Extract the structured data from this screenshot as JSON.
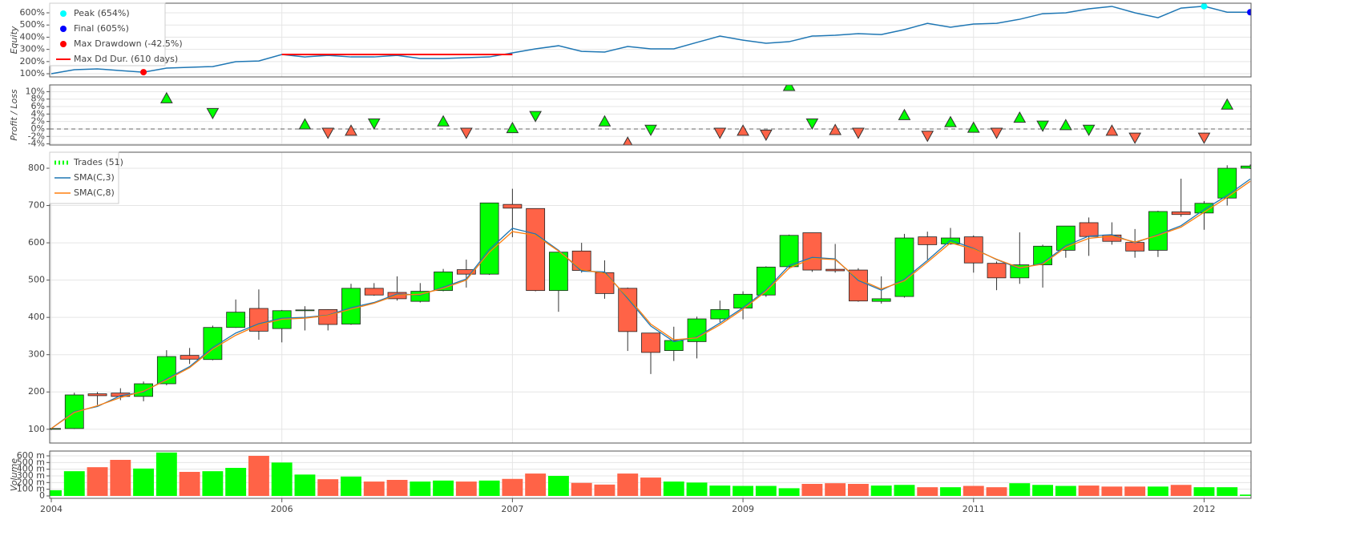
{
  "chart_data": [
    {
      "type": "line",
      "ylabel": "Equity",
      "ylim": [
        74,
        679
      ],
      "yticks": [
        {
          "value": 100,
          "label": "100%"
        },
        {
          "value": 200,
          "label": "200%"
        },
        {
          "value": 300,
          "label": "300%"
        },
        {
          "value": 400,
          "label": "400%"
        },
        {
          "value": 500,
          "label": "500%"
        },
        {
          "value": 600,
          "label": "600%"
        }
      ],
      "series": [
        {
          "color": "#1f77b4",
          "values": [
            100,
            133,
            140,
            126,
            113,
            146,
            153,
            159,
            199,
            205,
            258,
            238,
            251,
            238,
            238,
            251,
            225,
            225,
            232,
            238,
            271,
            304,
            330,
            284,
            278,
            324,
            304,
            304,
            357,
            409,
            376,
            350,
            363,
            409,
            416,
            429,
            422,
            462,
            514,
            482,
            508,
            514,
            547,
            593,
            600,
            633,
            653,
            600,
            560,
            639,
            654,
            605,
            605
          ]
        }
      ],
      "points": [
        {
          "name": "Peak (654%)",
          "color": "#00ffff",
          "x": 50,
          "value": 654
        },
        {
          "name": "Final (605%)",
          "color": "#0000ff",
          "x": 52,
          "value": 605
        },
        {
          "name": "Max Drawdown (-42.5%)",
          "color": "#ff0000",
          "x": 4,
          "value": 113
        }
      ],
      "segment": {
        "name": "Max Dd Dur. (610 days)",
        "color": "#ff0000",
        "x": [
          10,
          20
        ],
        "value": 258
      }
    },
    {
      "type": "scatter",
      "ylabel": "Profit / Loss",
      "ylim": [
        -4.3,
        11.8
      ],
      "yticks": [
        {
          "value": 10,
          "label": "10%"
        },
        {
          "value": 8,
          "label": "8%"
        },
        {
          "value": 6,
          "label": "6%"
        },
        {
          "value": 4,
          "label": "4%"
        },
        {
          "value": 2,
          "label": "2%"
        },
        {
          "value": 0,
          "label": "0%"
        },
        {
          "value": -2,
          "label": "-2%"
        },
        {
          "value": -4,
          "label": "-4%"
        }
      ],
      "x": [
        5,
        7,
        11,
        12,
        13,
        14,
        17,
        18,
        20,
        21,
        24,
        25,
        26,
        29,
        30,
        31,
        32,
        33,
        34,
        35,
        37,
        38,
        39,
        40,
        41,
        42,
        43,
        44,
        45,
        46,
        47,
        50,
        51
      ],
      "values": [
        8.2,
        4.3,
        1.2,
        -1.0,
        -0.5,
        1.5,
        2.0,
        -1.0,
        0.2,
        3.5,
        2.0,
        -3.7,
        -0.2,
        -1.0,
        -0.5,
        -1.5,
        11.5,
        1.5,
        -0.3,
        -1.0,
        3.7,
        -1.8,
        1.8,
        0.3,
        -1.0,
        3.0,
        0.9,
        1.0,
        -0.2,
        -0.5,
        -2.3,
        -2.3,
        6.5
      ],
      "markers": [
        "triangle",
        "inverted_triangle",
        "triangle",
        "inverted_triangle",
        "triangle",
        "inverted_triangle",
        "triangle",
        "inverted_triangle",
        "triangle",
        "inverted_triangle",
        "triangle",
        "triangle",
        "inverted_triangle",
        "inverted_triangle",
        "triangle",
        "inverted_triangle",
        "triangle",
        "inverted_triangle",
        "triangle",
        "inverted_triangle",
        "triangle",
        "inverted_triangle",
        "triangle",
        "triangle",
        "inverted_triangle",
        "triangle",
        "inverted_triangle",
        "triangle",
        "inverted_triangle",
        "triangle",
        "inverted_triangle",
        "inverted_triangle",
        "triangle"
      ],
      "colors": [
        "#00ff00",
        "#00ff00",
        "#00ff00",
        "#ff6347",
        "#ff6347",
        "#00ff00",
        "#00ff00",
        "#ff6347",
        "#00ff00",
        "#00ff00",
        "#00ff00",
        "#ff6347",
        "#00ff00",
        "#ff6347",
        "#ff6347",
        "#ff6347",
        "#00ff00",
        "#00ff00",
        "#ff6347",
        "#ff6347",
        "#00ff00",
        "#ff6347",
        "#00ff00",
        "#00ff00",
        "#ff6347",
        "#00ff00",
        "#00ff00",
        "#00ff00",
        "#00ff00",
        "#ff6347",
        "#ff6347",
        "#ff6347",
        "#00ff00"
      ]
    },
    {
      "type": "candlestick",
      "ylim": [
        63,
        843
      ],
      "yticks": [
        100,
        200,
        300,
        400,
        500,
        600,
        700,
        800
      ],
      "up_color": "#00ff00",
      "down_color": "#ff6347",
      "legend_trades": "Trades (51)",
      "open": [
        100,
        102,
        195,
        197,
        188,
        222,
        298,
        287,
        373,
        424,
        370,
        418,
        421,
        382,
        478,
        467,
        443,
        472,
        528,
        516,
        703,
        692,
        472,
        578,
        520,
        478,
        358,
        311,
        335,
        396,
        425,
        460,
        536,
        627,
        529,
        527,
        443,
        456,
        616,
        597,
        616,
        545,
        506,
        541,
        580,
        654,
        621,
        601,
        580,
        683,
        680,
        720,
        800
      ],
      "high": [
        103,
        198,
        200,
        210,
        228,
        312,
        318,
        378,
        448,
        475,
        420,
        430,
        422,
        490,
        492,
        510,
        492,
        530,
        555,
        707,
        745,
        692,
        575,
        600,
        553,
        480,
        358,
        375,
        402,
        445,
        470,
        537,
        622,
        627,
        597,
        532,
        510,
        624,
        630,
        640,
        620,
        550,
        628,
        595,
        645,
        668,
        655,
        637,
        686,
        772,
        712,
        808,
        810
      ],
      "low": [
        98,
        101,
        165,
        178,
        175,
        218,
        275,
        285,
        372,
        340,
        333,
        365,
        365,
        380,
        458,
        445,
        440,
        470,
        480,
        514,
        615,
        470,
        415,
        520,
        450,
        310,
        248,
        283,
        290,
        387,
        395,
        455,
        530,
        522,
        520,
        442,
        437,
        453,
        555,
        595,
        520,
        473,
        490,
        480,
        560,
        565,
        595,
        560,
        562,
        670,
        635,
        700,
        798
      ],
      "close": [
        102,
        192,
        190,
        188,
        222,
        295,
        288,
        373,
        414,
        363,
        418,
        420,
        381,
        478,
        460,
        450,
        470,
        522,
        516,
        707,
        693,
        472,
        575,
        526,
        464,
        362,
        306,
        338,
        396,
        421,
        462,
        535,
        620,
        527,
        525,
        444,
        450,
        613,
        595,
        613,
        546,
        506,
        541,
        591,
        645,
        617,
        604,
        578,
        684,
        676,
        706,
        800,
        806
      ],
      "series": [
        {
          "name": "SMA(C,3)",
          "color": "#1f77b4",
          "values": [
            102,
            147,
            161,
            190,
            200,
            235,
            268,
            319,
            358,
            383,
            398,
            400,
            406,
            426,
            440,
            463,
            460,
            481,
            503,
            582,
            639,
            624,
            580,
            524,
            522,
            451,
            377,
            335,
            347,
            385,
            426,
            473,
            539,
            561,
            557,
            499,
            473,
            502,
            553,
            607,
            585,
            555,
            531,
            546,
            592,
            618,
            622,
            600,
            622,
            646,
            689,
            727,
            771
          ]
        },
        {
          "name": "SMA(C,8)",
          "color": "#ff7f0e",
          "values": [
            102,
            145,
            163,
            185,
            202,
            232,
            265,
            315,
            352,
            380,
            395,
            398,
            405,
            422,
            438,
            460,
            462,
            478,
            500,
            575,
            630,
            620,
            578,
            528,
            518,
            455,
            382,
            340,
            345,
            380,
            422,
            470,
            532,
            558,
            555,
            503,
            476,
            498,
            548,
            600,
            583,
            556,
            533,
            543,
            588,
            612,
            618,
            602,
            620,
            642,
            682,
            722,
            765
          ]
        }
      ]
    },
    {
      "type": "bar",
      "ylabel": "Volume",
      "ylim": [
        -36000000,
        672000000
      ],
      "yticks": [
        {
          "value": 0,
          "label": "0"
        },
        {
          "value": 100000000,
          "label": "100 m"
        },
        {
          "value": 200000000,
          "label": "200 m"
        },
        {
          "value": 300000000,
          "label": "300 m"
        },
        {
          "value": 400000000,
          "label": "400 m"
        },
        {
          "value": 500000000,
          "label": "500 m"
        },
        {
          "value": 600000000,
          "label": "600 m"
        }
      ],
      "xlim": [
        0,
        52
      ],
      "xticks": [
        {
          "value": 0,
          "label": "2004"
        },
        {
          "value": 10,
          "label": "2006"
        },
        {
          "value": 20,
          "label": "2007"
        },
        {
          "value": 30,
          "label": "2009"
        },
        {
          "value": 40,
          "label": "2011"
        },
        {
          "value": 50,
          "label": "2012"
        }
      ],
      "values": [
        85000000,
        370000000,
        430000000,
        540000000,
        410000000,
        650000000,
        360000000,
        370000000,
        420000000,
        600000000,
        500000000,
        320000000,
        250000000,
        290000000,
        215000000,
        240000000,
        215000000,
        230000000,
        215000000,
        230000000,
        255000000,
        335000000,
        300000000,
        195000000,
        170000000,
        335000000,
        275000000,
        215000000,
        200000000,
        155000000,
        150000000,
        150000000,
        115000000,
        180000000,
        190000000,
        180000000,
        155000000,
        165000000,
        130000000,
        130000000,
        150000000,
        130000000,
        190000000,
        165000000,
        150000000,
        155000000,
        140000000,
        140000000,
        140000000,
        165000000,
        130000000,
        130000000,
        20000000
      ]
    }
  ]
}
